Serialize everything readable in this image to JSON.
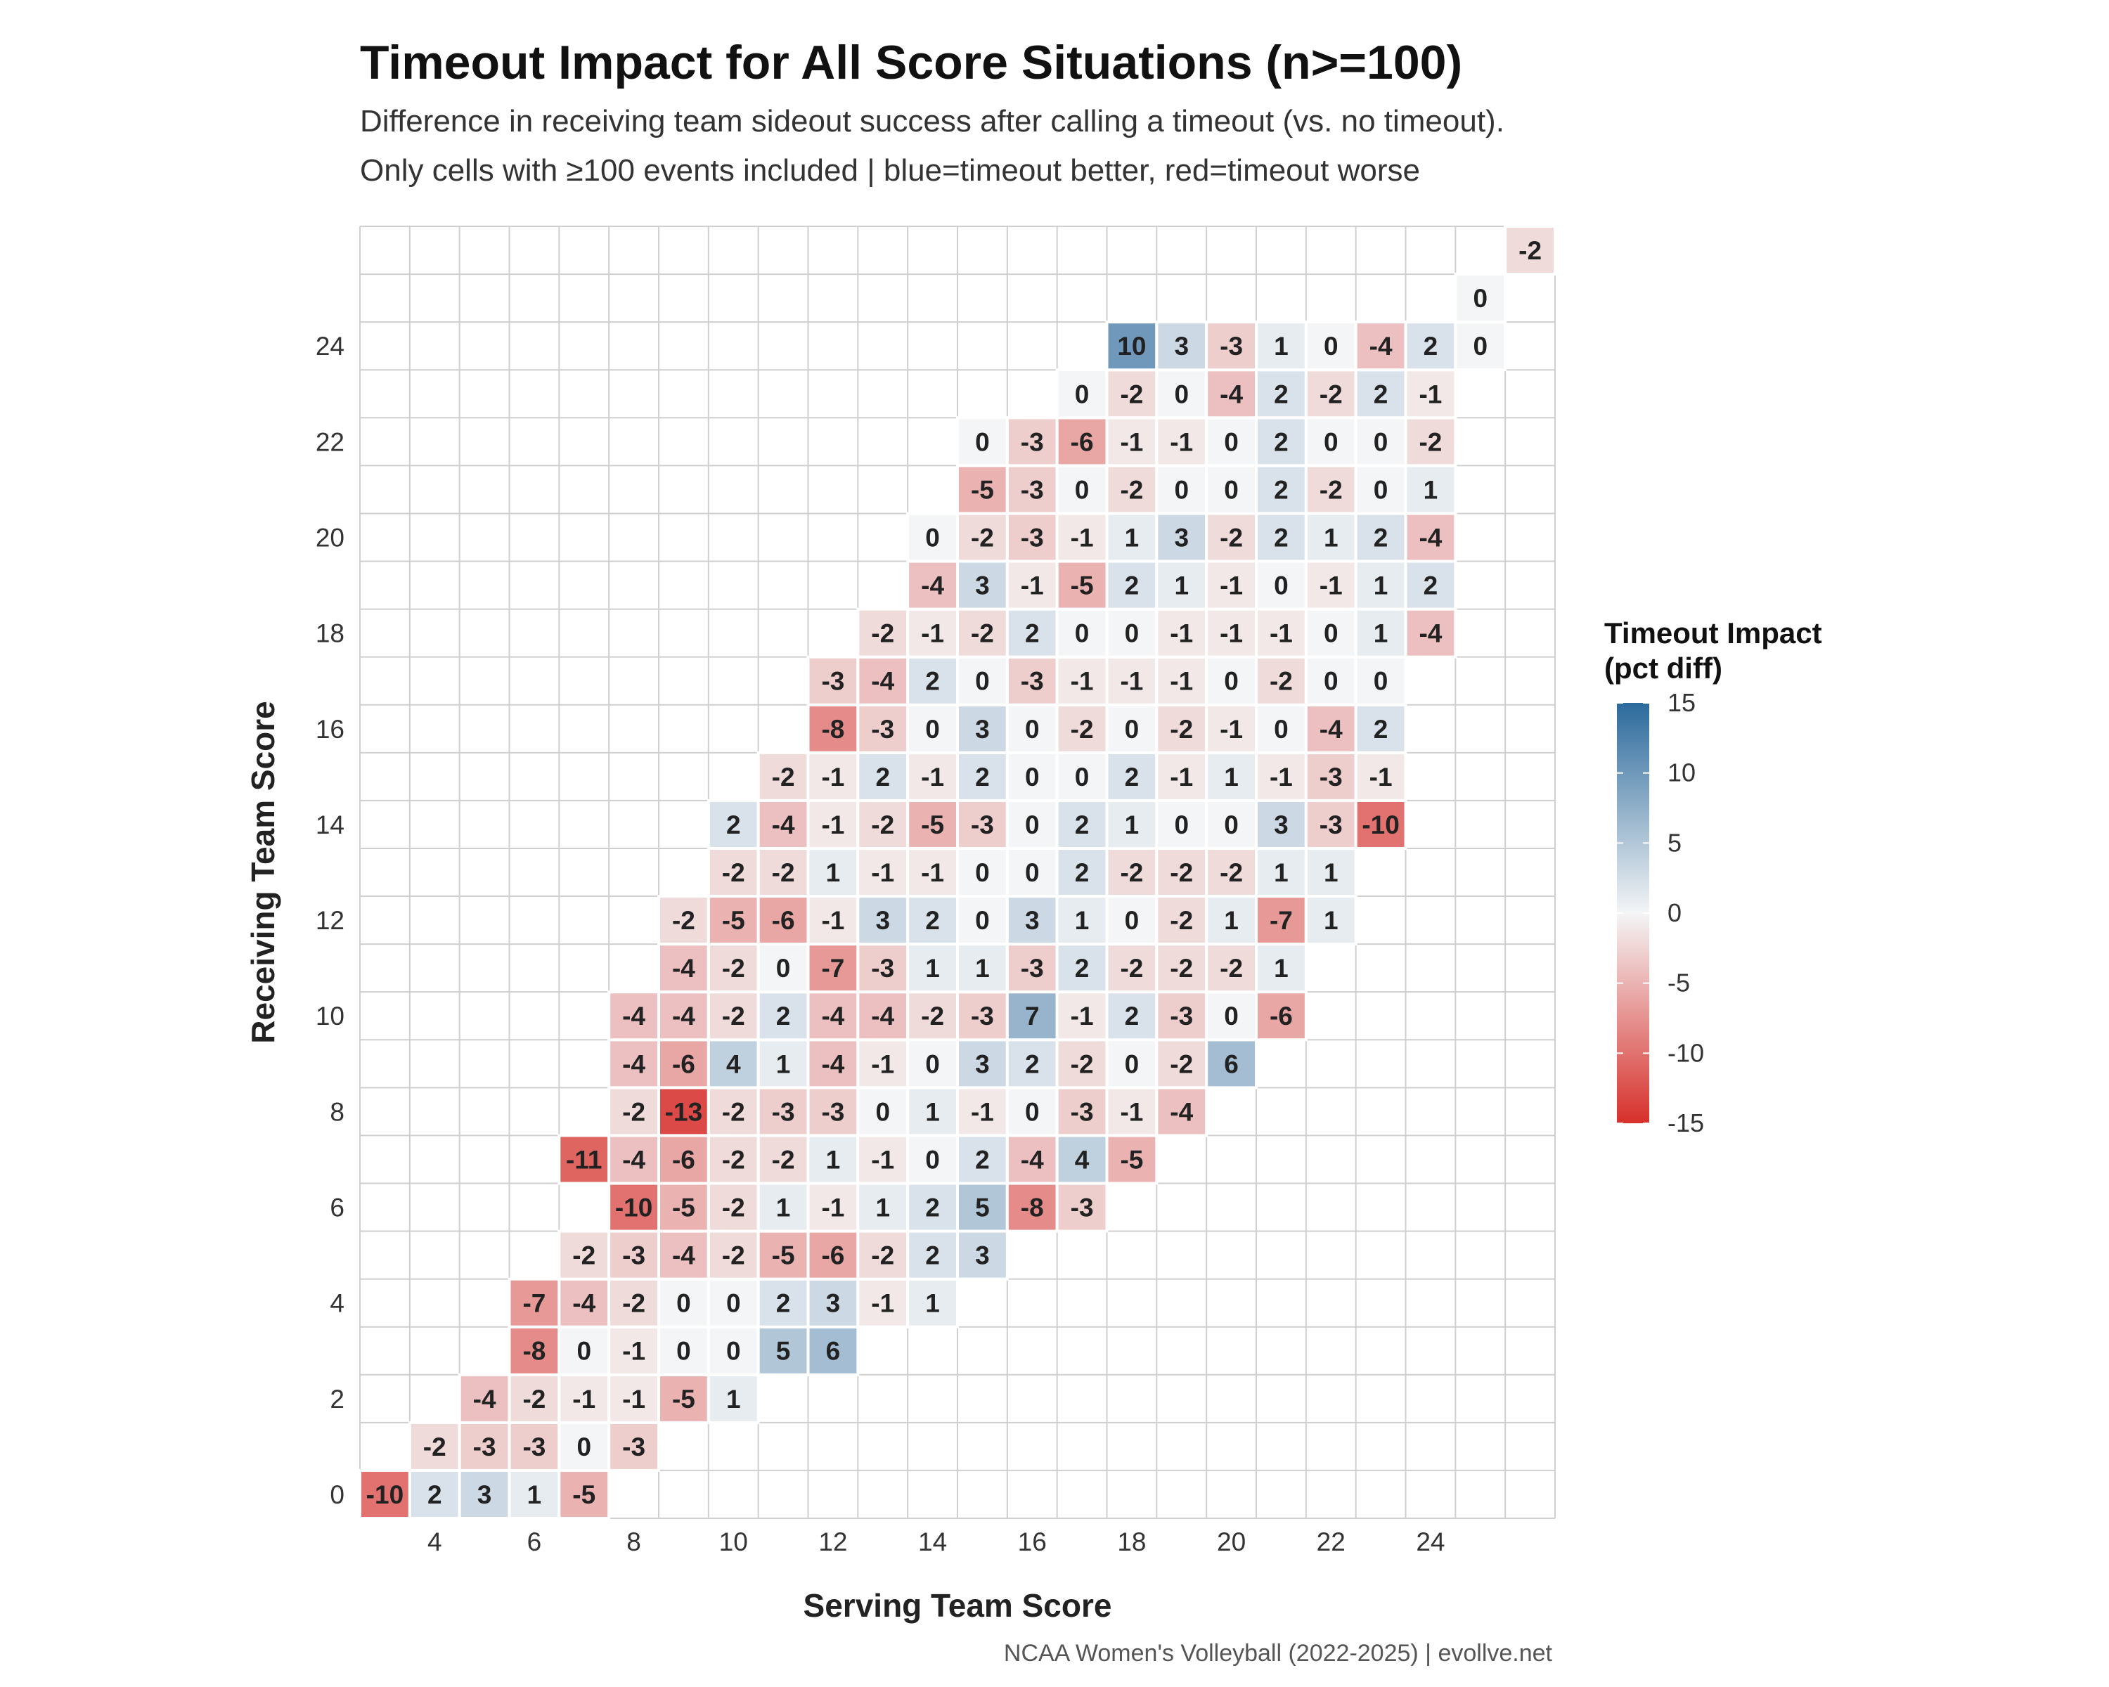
{
  "title": "Timeout Impact for All Score Situations (n>=100)",
  "subtitle_line1": "Difference in receiving team sideout success after calling a timeout (vs. no timeout).",
  "subtitle_line2": "Only cells with ≥100 events included | blue=timeout better, red=timeout worse",
  "caption": "NCAA Women's Volleyball (2022-2025) | evollve.net",
  "legend": {
    "title_line1": "Timeout Impact",
    "title_line2": "(pct diff)",
    "breaks": [
      15,
      10,
      5,
      0,
      -5,
      -10,
      -15
    ],
    "colors": {
      "low": "#d7302b",
      "mid": "#f4f5f6",
      "high": "#2c6a9c"
    }
  },
  "chart_data": {
    "type": "heatmap",
    "title": "Timeout Impact for All Score Situations (n>=100)",
    "xlabel": "Serving Team Score",
    "ylabel": "Receiving Team Score",
    "x_range": [
      3,
      26
    ],
    "y_range": [
      0,
      26
    ],
    "x_ticks": [
      4,
      6,
      8,
      10,
      12,
      14,
      16,
      18,
      20,
      22,
      24
    ],
    "y_ticks": [
      0,
      2,
      4,
      6,
      8,
      10,
      12,
      14,
      16,
      18,
      20,
      22,
      24
    ],
    "color_scale": {
      "min": -15,
      "max": 15
    },
    "rows": [
      {
        "y": 0,
        "x_start": 3,
        "values": [
          -10,
          2,
          3,
          1,
          -5
        ]
      },
      {
        "y": 1,
        "x_start": 4,
        "values": [
          -2,
          -3,
          -3,
          0,
          -3
        ]
      },
      {
        "y": 2,
        "x_start": 5,
        "values": [
          -4,
          -2,
          -1,
          -1,
          -5,
          1
        ]
      },
      {
        "y": 3,
        "x_start": 6,
        "values": [
          -8,
          0,
          -1,
          0,
          0,
          5,
          6
        ]
      },
      {
        "y": 4,
        "x_start": 6,
        "values": [
          -7,
          -4,
          -2,
          0,
          0,
          2,
          3,
          -1,
          1
        ]
      },
      {
        "y": 5,
        "x_start": 7,
        "values": [
          -2,
          -3,
          -4,
          -2,
          -5,
          -6,
          -2,
          2,
          3
        ]
      },
      {
        "y": 6,
        "x_start": 8,
        "values": [
          -10,
          -5,
          -2,
          1,
          -1,
          1,
          2,
          5,
          -8,
          -3
        ]
      },
      {
        "y": 7,
        "x_start": 7,
        "values": [
          -11,
          -4,
          -6,
          -2,
          -2,
          1,
          -1,
          0,
          2,
          -4,
          4,
          -5
        ]
      },
      {
        "y": 8,
        "x_start": 8,
        "values": [
          -2,
          -13,
          -2,
          -3,
          -3,
          0,
          1,
          -1,
          0,
          -3,
          -1,
          -4
        ]
      },
      {
        "y": 9,
        "x_start": 8,
        "values": [
          -4,
          -6,
          4,
          1,
          -4,
          -1,
          0,
          3,
          2,
          -2,
          0,
          -2,
          6
        ]
      },
      {
        "y": 10,
        "x_start": 8,
        "values": [
          -4,
          -4,
          -2,
          2,
          -4,
          -4,
          -2,
          -3,
          7,
          -1,
          2,
          -3,
          0,
          -6
        ]
      },
      {
        "y": 11,
        "x_start": 9,
        "values": [
          -4,
          -2,
          0,
          -7,
          -3,
          1,
          1,
          -3,
          2,
          -2,
          -2,
          -2,
          1
        ]
      },
      {
        "y": 12,
        "x_start": 9,
        "values": [
          -2,
          -5,
          -6,
          -1,
          3,
          2,
          0,
          3,
          1,
          0,
          -2,
          1,
          -7,
          1
        ]
      },
      {
        "y": 13,
        "x_start": 10,
        "values": [
          -2,
          -2,
          1,
          -1,
          -1,
          0,
          0,
          2,
          -2,
          -2,
          -2,
          1,
          1
        ]
      },
      {
        "y": 14,
        "x_start": 10,
        "values": [
          2,
          -4,
          -1,
          -2,
          -5,
          -3,
          0,
          2,
          1,
          0,
          0,
          3,
          -3,
          -10
        ]
      },
      {
        "y": 15,
        "x_start": 11,
        "values": [
          -2,
          -1,
          2,
          -1,
          2,
          0,
          0,
          2,
          -1,
          1,
          -1,
          -3,
          -1
        ]
      },
      {
        "y": 16,
        "x_start": 12,
        "values": [
          -8,
          -3,
          0,
          3,
          0,
          -2,
          0,
          -2,
          -1,
          0,
          -4,
          2
        ]
      },
      {
        "y": 17,
        "x_start": 12,
        "values": [
          -3,
          -4,
          2,
          0,
          -3,
          -1,
          -1,
          -1,
          0,
          -2,
          0,
          0
        ]
      },
      {
        "y": 18,
        "x_start": 13,
        "values": [
          -2,
          -1,
          -2,
          2,
          0,
          0,
          -1,
          -1,
          -1,
          0,
          1,
          -4
        ]
      },
      {
        "y": 19,
        "x_start": 14,
        "values": [
          -4,
          3,
          -1,
          -5,
          2,
          1,
          -1,
          0,
          -1,
          1,
          2
        ]
      },
      {
        "y": 20,
        "x_start": 14,
        "values": [
          0,
          -2,
          -3,
          -1,
          1,
          3,
          -2,
          2,
          1,
          2,
          -4
        ]
      },
      {
        "y": 21,
        "x_start": 15,
        "values": [
          -5,
          -3,
          0,
          -2,
          0,
          0,
          2,
          -2,
          0,
          1
        ]
      },
      {
        "y": 22,
        "x_start": 15,
        "values": [
          0,
          -3,
          -6,
          -1,
          -1,
          0,
          2,
          0,
          0,
          -2
        ]
      },
      {
        "y": 23,
        "x_start": 17,
        "values": [
          0,
          -2,
          0,
          -4,
          2,
          -2,
          2,
          -1
        ]
      },
      {
        "y": 24,
        "x_start": 18,
        "values": [
          10,
          3,
          -3,
          1,
          0,
          -4,
          2,
          0
        ]
      },
      {
        "y": 25,
        "x_start": 25,
        "values": [
          0
        ]
      },
      {
        "y": 26,
        "x_start": 26,
        "values": [
          -2
        ]
      }
    ]
  }
}
